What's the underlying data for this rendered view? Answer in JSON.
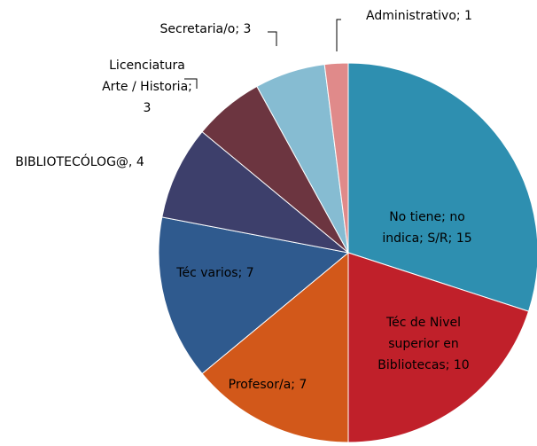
{
  "chart_data": {
    "type": "pie",
    "categories": [
      "No tiene;  no indica; S/R; 15",
      "Téc de Nivel superior en Bibliotecas; 10",
      "Profesor/a; 7",
      "Téc varios; 7",
      "BIBLIOTECÓLOG@, 4",
      "Licenciatura Arte / Historia; 3",
      "Secretaria/o; 3",
      "Administrativo; 1"
    ],
    "values": [
      15,
      10,
      7,
      7,
      4,
      3,
      3,
      1
    ],
    "colors": [
      "#2e8fb0",
      "#c0202a",
      "#d2581a",
      "#2f5a8e",
      "#3d3f6b",
      "#6c3540",
      "#86bcd2",
      "#e08a8a"
    ]
  }
}
